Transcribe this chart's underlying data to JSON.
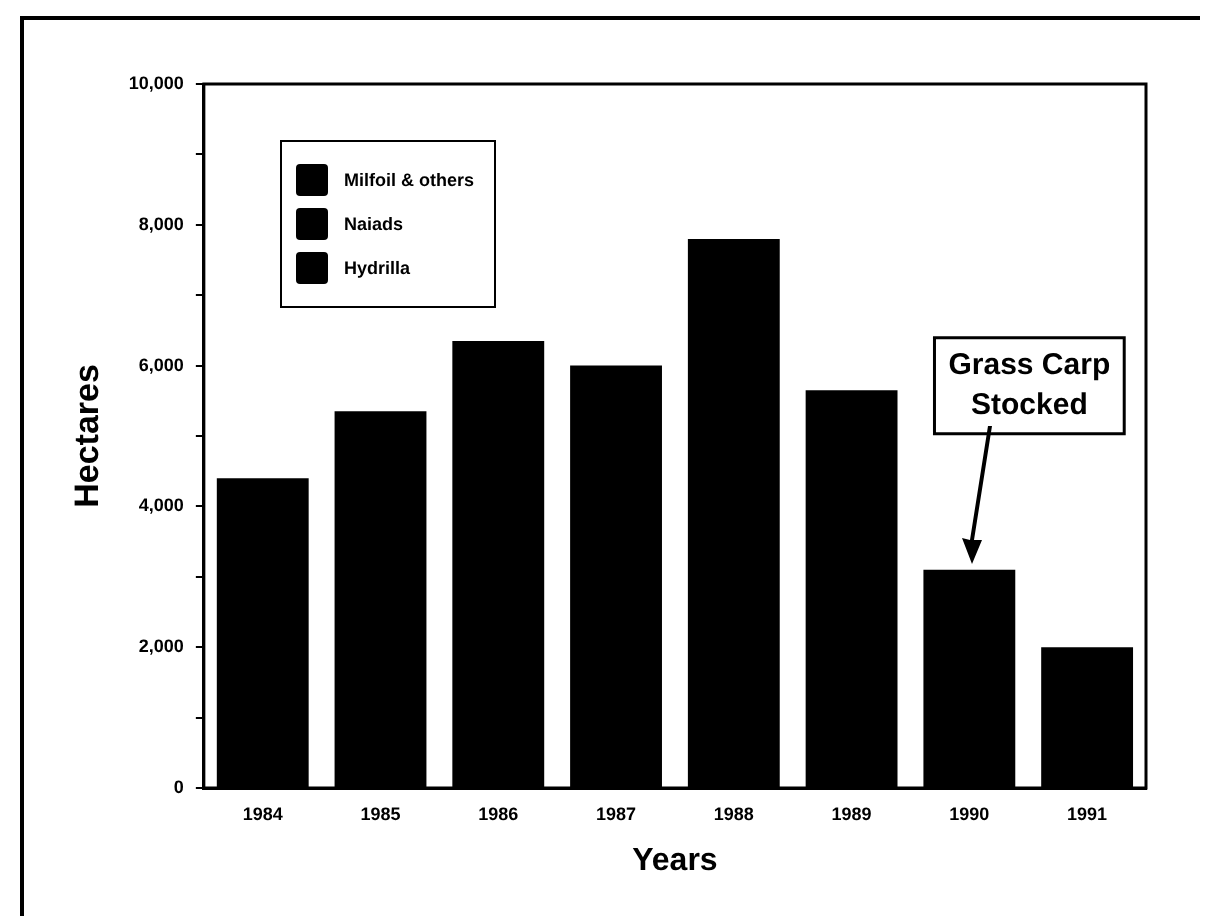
{
  "chart_data": {
    "type": "bar",
    "xlabel": "Years",
    "ylabel": "Hectares",
    "categories": [
      "1984",
      "1985",
      "1986",
      "1987",
      "1988",
      "1989",
      "1990",
      "1991"
    ],
    "values": [
      4400,
      5350,
      6350,
      6000,
      7800,
      5650,
      3100,
      2000
    ],
    "color": "#000000",
    "ylim": [
      0,
      10000
    ],
    "yticks": [
      {
        "value": 0,
        "label": "0"
      },
      {
        "value": 1000,
        "label": null
      },
      {
        "value": 2000,
        "label": "2,000"
      },
      {
        "value": 3000,
        "label": null
      },
      {
        "value": 4000,
        "label": "4,000"
      },
      {
        "value": 5000,
        "label": null
      },
      {
        "value": 6000,
        "label": "6,000"
      },
      {
        "value": 7000,
        "label": null
      },
      {
        "value": 8000,
        "label": "8,000"
      },
      {
        "value": 9000,
        "label": null
      },
      {
        "value": 10000,
        "label": "10,000"
      }
    ],
    "annotations": [
      "Milfoil & others",
      "Naiads",
      "Hydrilla",
      "Grass Carp Stocked"
    ]
  }
}
